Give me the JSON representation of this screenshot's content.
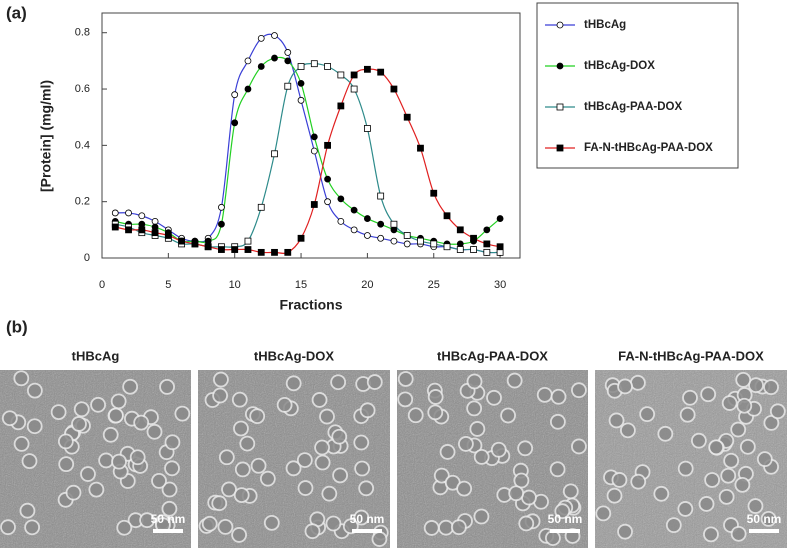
{
  "chart_data": {
    "type": "line",
    "panel_label": "(a)",
    "x_label": "Fractions",
    "y_label": "[Protein] (mg/ml)",
    "x": [
      1,
      2,
      3,
      4,
      5,
      6,
      7,
      8,
      9,
      10,
      11,
      12,
      13,
      14,
      15,
      16,
      17,
      18,
      19,
      20,
      21,
      22,
      23,
      24,
      25,
      26,
      27,
      28,
      29,
      30
    ],
    "xlim": [
      0,
      31.5
    ],
    "xticks": [
      0,
      5,
      10,
      15,
      20,
      25,
      30
    ],
    "ylim": [
      0,
      0.87
    ],
    "yticks": [
      0,
      0.2,
      0.4,
      0.6,
      0.8
    ],
    "legend_position": "right",
    "smooth": true,
    "series": [
      {
        "name": "tHBcAg",
        "color": "#3a3fd6",
        "marker": "circle-open",
        "values": [
          0.16,
          0.16,
          0.15,
          0.13,
          0.1,
          0.07,
          0.06,
          0.07,
          0.18,
          0.58,
          0.7,
          0.78,
          0.79,
          0.73,
          0.56,
          0.38,
          0.2,
          0.13,
          0.1,
          0.08,
          0.07,
          0.06,
          0.05,
          0.05,
          0.04,
          0.04,
          0.03,
          0.03,
          0.02,
          0.02
        ]
      },
      {
        "name": "tHBcAg-DOX",
        "color": "#22d022",
        "marker": "circle-filled",
        "values": [
          0.13,
          0.12,
          0.12,
          0.11,
          0.09,
          0.06,
          0.06,
          0.06,
          0.12,
          0.48,
          0.6,
          0.68,
          0.71,
          0.7,
          0.62,
          0.43,
          0.28,
          0.21,
          0.17,
          0.14,
          0.12,
          0.1,
          0.08,
          0.07,
          0.06,
          0.05,
          0.05,
          0.06,
          0.1,
          0.14
        ]
      },
      {
        "name": "tHBcAg-PAA-DOX",
        "color": "#2e8b8b",
        "marker": "square-open",
        "values": [
          0.12,
          0.11,
          0.09,
          0.08,
          0.07,
          0.05,
          0.05,
          0.04,
          0.04,
          0.04,
          0.06,
          0.18,
          0.37,
          0.61,
          0.68,
          0.69,
          0.68,
          0.65,
          0.6,
          0.46,
          0.22,
          0.12,
          0.08,
          0.06,
          0.05,
          0.04,
          0.03,
          0.03,
          0.02,
          0.02
        ]
      },
      {
        "name": "FA-N-tHBcAg-PAA-DOX",
        "color": "#e02020",
        "marker": "square-filled",
        "values": [
          0.11,
          0.1,
          0.1,
          0.09,
          0.08,
          0.06,
          0.05,
          0.04,
          0.03,
          0.03,
          0.03,
          0.02,
          0.02,
          0.02,
          0.07,
          0.19,
          0.4,
          0.54,
          0.65,
          0.67,
          0.66,
          0.6,
          0.5,
          0.39,
          0.23,
          0.15,
          0.1,
          0.07,
          0.05,
          0.04
        ]
      }
    ]
  },
  "micrographs": {
    "panel_label": "(b)",
    "images": [
      {
        "title": "tHBcAg",
        "scale_bar": "50 nm"
      },
      {
        "title": "tHBcAg-DOX",
        "scale_bar": "50 nm"
      },
      {
        "title": "tHBcAg-PAA-DOX",
        "scale_bar": "50 nm"
      },
      {
        "title": "FA-N-tHBcAg-PAA-DOX",
        "scale_bar": "50 nm"
      }
    ]
  }
}
